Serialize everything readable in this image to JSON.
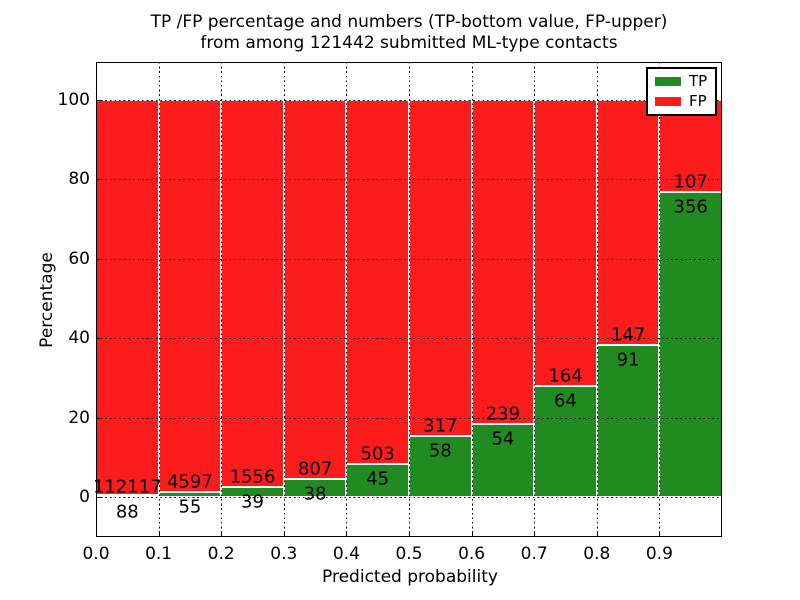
{
  "figure": {
    "title_line1": "TP /FP percentage and numbers (TP-bottom value, FP-upper)",
    "title_line2": "from among 121442 submitted ML-type contacts"
  },
  "axes": {
    "xlabel": "Predicted probability",
    "ylabel": "Percentage",
    "x_tick_labels": [
      "0.0",
      "0.1",
      "0.2",
      "0.3",
      "0.4",
      "0.5",
      "0.6",
      "0.7",
      "0.8",
      "0.9"
    ],
    "y_tick_labels": [
      "0",
      "20",
      "40",
      "60",
      "80",
      "100"
    ],
    "y_tick_values": [
      0,
      20,
      40,
      60,
      80,
      100
    ],
    "xlim": [
      0.0,
      1.0
    ],
    "ylim": [
      -10.1,
      109.6
    ],
    "grid": "dotted, both axes, drawn over bars"
  },
  "legend": {
    "position": "upper right",
    "items": [
      {
        "label": "TP",
        "color": "#218b21"
      },
      {
        "label": "FP",
        "color": "#fc1c1c"
      }
    ]
  },
  "chart_data": {
    "type": "bar",
    "stacked": true,
    "normalization": "each bin scaled to 100 percent; TP segment on bottom, FP on top",
    "title": "TP /FP percentage and numbers (TP-bottom value, FP-upper) from among 121442 submitted ML-type contacts",
    "xlabel": "Predicted probability",
    "ylabel": "Percentage",
    "bin_width": 0.1,
    "categories": [
      0.0,
      0.1,
      0.2,
      0.3,
      0.4,
      0.5,
      0.6,
      0.7,
      0.8,
      0.9
    ],
    "series": [
      {
        "name": "TP",
        "color": "#218b21",
        "counts": [
          88,
          55,
          39,
          38,
          45,
          58,
          54,
          64,
          91,
          356
        ]
      },
      {
        "name": "FP",
        "color": "#fc1c1c",
        "counts": [
          112117,
          4597,
          1556,
          807,
          503,
          317,
          239,
          164,
          147,
          107
        ]
      }
    ],
    "total_contacts": 121442,
    "ylim": [
      -10.1,
      109.6
    ],
    "grid": true,
    "legend_position": "upper right"
  },
  "colors": {
    "tp_green": "#218b21",
    "fp_red": "#fc1c1c",
    "bar_edge": "#ffffff",
    "grid": "#000000",
    "frame": "#000000",
    "background": "#ffffff",
    "text": "#000000"
  }
}
